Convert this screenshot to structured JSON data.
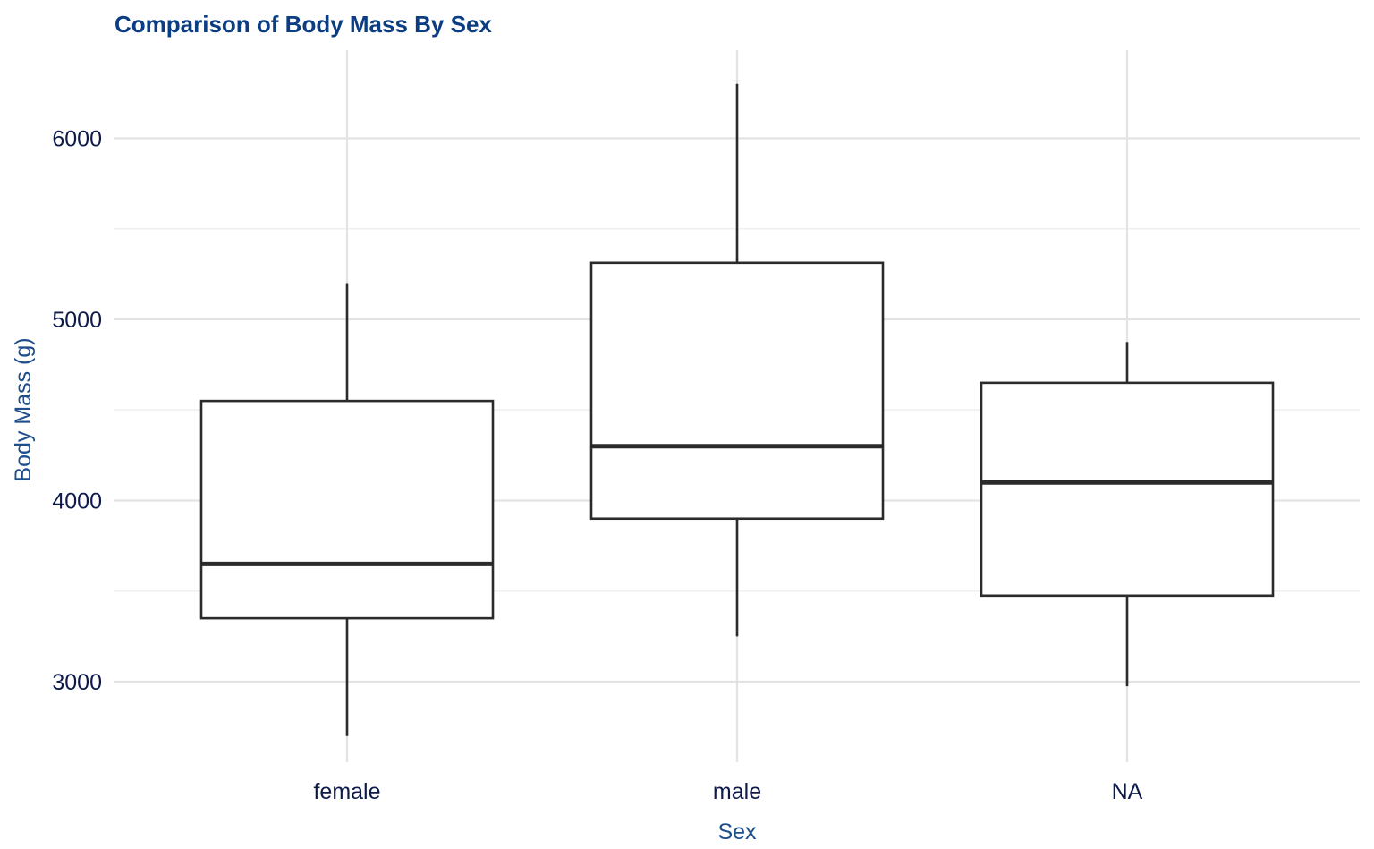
{
  "chart_data": {
    "type": "boxplot",
    "title": "Comparison of Body Mass By Sex",
    "xlabel": "Sex",
    "ylabel": "Body Mass (g)",
    "categories": [
      "female",
      "male",
      "NA"
    ],
    "boxes": [
      {
        "category": "female",
        "min": 2700,
        "q1": 3350,
        "median": 3650,
        "q3": 4550,
        "max": 5200
      },
      {
        "category": "male",
        "min": 3250,
        "q1": 3900,
        "median": 4300,
        "q3": 5312,
        "max": 6300
      },
      {
        "category": "NA",
        "min": 2975,
        "q1": 3475,
        "median": 4100,
        "q3": 4650,
        "max": 4875
      }
    ],
    "yticks": [
      3000,
      4000,
      5000,
      6000
    ],
    "ylim": [
      2520,
      6480
    ],
    "grid": true,
    "legend": "none",
    "colors": {
      "title": "#0b3d82",
      "axis_title": "#1f4e8c",
      "tick_label": "#0d1a4a",
      "box_stroke": "#2b2b2b",
      "grid": "#e3e3e3"
    }
  }
}
